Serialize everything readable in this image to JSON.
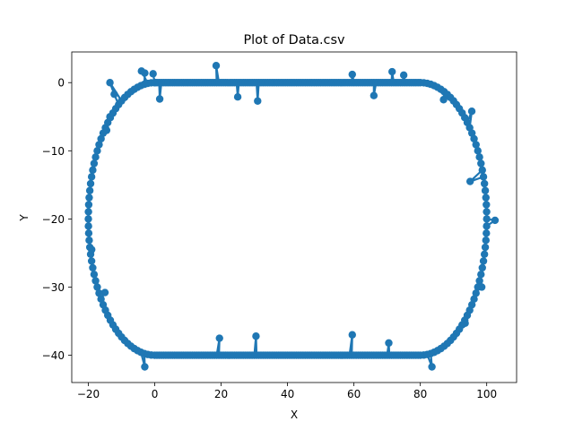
{
  "chart_data": {
    "type": "line",
    "title": "Plot of Data.csv",
    "xlabel": "X",
    "ylabel": "Y",
    "xlim": [
      -25,
      109
    ],
    "ylim": [
      -44,
      4.5
    ],
    "xticks": [
      -20,
      0,
      20,
      40,
      60,
      80,
      100
    ],
    "yticks": [
      0,
      -10,
      -20,
      -30,
      -40
    ],
    "xtick_labels": [
      "−20",
      "0",
      "20",
      "40",
      "60",
      "80",
      "100"
    ],
    "ytick_labels": [
      "0",
      "−10",
      "−20",
      "−30",
      "−40"
    ],
    "grid": false,
    "marker": "o",
    "color": "#1f77b4",
    "shape": {
      "description_values": "closed rounded-rectangle track with noise spikes",
      "top_y": 0,
      "bottom_y": -40,
      "left_x": -20,
      "right_x": 100,
      "straight_x_start": 0,
      "straight_x_end": 80,
      "corner_radius_x": 20,
      "corner_radius_y": 20
    },
    "outliers": [
      [
        -13.5,
        0.0
      ],
      [
        -12.2,
        -1.7
      ],
      [
        -4.0,
        1.7
      ],
      [
        -3.0,
        1.4
      ],
      [
        -0.5,
        1.3
      ],
      [
        1.5,
        -2.4
      ],
      [
        18.5,
        2.5
      ],
      [
        25.0,
        -2.1
      ],
      [
        31.0,
        -2.7
      ],
      [
        59.5,
        1.2
      ],
      [
        66.0,
        -1.9
      ],
      [
        71.5,
        1.6
      ],
      [
        75.0,
        1.1
      ],
      [
        87.0,
        -2.5
      ],
      [
        95.5,
        -4.2
      ],
      [
        95.0,
        -14.5
      ],
      [
        102.5,
        -20.2
      ],
      [
        98.5,
        -30.0
      ],
      [
        93.5,
        -35.3
      ],
      [
        83.5,
        -41.7
      ],
      [
        70.5,
        -38.2
      ],
      [
        59.5,
        -37.0
      ],
      [
        30.5,
        -37.2
      ],
      [
        19.5,
        -37.5
      ],
      [
        -3.0,
        -41.7
      ],
      [
        -15.0,
        -30.8
      ],
      [
        -19.0,
        -24.5
      ],
      [
        -14.5,
        -7.0
      ],
      [
        -13.5,
        -5.0
      ]
    ]
  }
}
